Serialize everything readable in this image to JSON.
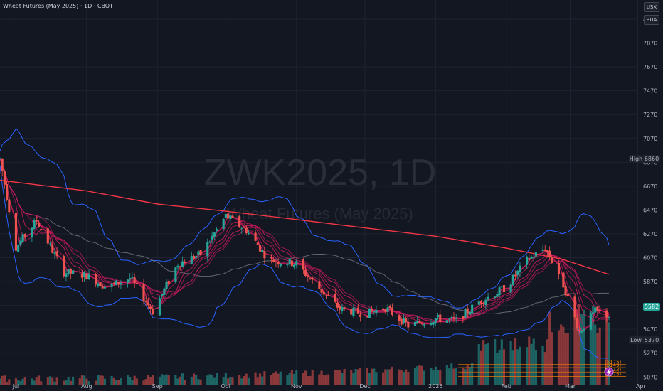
{
  "header": {
    "title": "Wheat Futures (May 2025) · 1D · CBOT",
    "currency": "USX",
    "unit": "BUA"
  },
  "watermark": {
    "symbol": "ZWK2025, 1D",
    "name": "Wheat Futures (May 2025)"
  },
  "labels": {
    "high_label": "High",
    "high_value": "6860",
    "low_label": "Low",
    "low_value": "5370",
    "last_value": "5582"
  },
  "colors": {
    "up": "#26a69a",
    "down": "#ef5350",
    "ma200": "#f23645",
    "bollinger": "#2962ff",
    "ribbon": "#e91e63",
    "ma_gray": "#787b86",
    "fib": "#f57c00"
  },
  "chart_data": {
    "type": "candlestick",
    "y_axis": {
      "min": 5000,
      "max": 8100,
      "ticks": [
        "8070",
        "7870",
        "7670",
        "7470",
        "7270",
        "7070",
        "6870",
        "6670",
        "6470",
        "6270",
        "6070",
        "5870",
        "5670",
        "5470",
        "5270",
        "5070"
      ]
    },
    "x_axis": {
      "ticks": [
        "Jul",
        "Aug",
        "Sep",
        "Oct",
        "Nov",
        "Dec",
        "2025",
        "Feb",
        "Mar",
        "Apr"
      ]
    },
    "ma200": [
      {
        "d": "2024-06-24",
        "v": 6720
      },
      {
        "d": "2024-08-01",
        "v": 6630
      },
      {
        "d": "2024-09-01",
        "v": 6520
      },
      {
        "d": "2024-10-01",
        "v": 6460
      },
      {
        "d": "2024-11-01",
        "v": 6390
      },
      {
        "d": "2024-12-01",
        "v": 6320
      },
      {
        "d": "2025-01-01",
        "v": 6250
      },
      {
        "d": "2025-02-01",
        "v": 6150
      },
      {
        "d": "2025-02-25",
        "v": 6060
      },
      {
        "d": "2025-03-18",
        "v": 5930
      }
    ],
    "price_path": [
      {
        "d": "2024-06-24",
        "v": 6900
      },
      {
        "d": "2024-07-01",
        "v": 6160
      },
      {
        "d": "2024-07-10",
        "v": 6380
      },
      {
        "d": "2024-07-22",
        "v": 5950
      },
      {
        "d": "2024-08-01",
        "v": 5920
      },
      {
        "d": "2024-08-10",
        "v": 5820
      },
      {
        "d": "2024-08-20",
        "v": 5900
      },
      {
        "d": "2024-08-30",
        "v": 5620
      },
      {
        "d": "2024-09-10",
        "v": 6020
      },
      {
        "d": "2024-09-20",
        "v": 6100
      },
      {
        "d": "2024-10-01",
        "v": 6420
      },
      {
        "d": "2024-10-10",
        "v": 6300
      },
      {
        "d": "2024-10-20",
        "v": 6050
      },
      {
        "d": "2024-11-01",
        "v": 6020
      },
      {
        "d": "2024-11-10",
        "v": 5830
      },
      {
        "d": "2024-11-20",
        "v": 5640
      },
      {
        "d": "2024-12-01",
        "v": 5600
      },
      {
        "d": "2024-12-10",
        "v": 5650
      },
      {
        "d": "2024-12-20",
        "v": 5500
      },
      {
        "d": "2025-01-01",
        "v": 5560
      },
      {
        "d": "2025-01-10",
        "v": 5540
      },
      {
        "d": "2025-01-20",
        "v": 5700
      },
      {
        "d": "2025-02-01",
        "v": 5820
      },
      {
        "d": "2025-02-10",
        "v": 6050
      },
      {
        "d": "2025-02-18",
        "v": 6150
      },
      {
        "d": "2025-02-25",
        "v": 5900
      },
      {
        "d": "2025-03-05",
        "v": 5450
      },
      {
        "d": "2025-03-12",
        "v": 5620
      },
      {
        "d": "2025-03-18",
        "v": 5582
      }
    ],
    "fib_levels": [
      {
        "label": "(5175)",
        "v": 5175
      },
      {
        "label": "(5149)",
        "v": 5149
      },
      {
        "label": "(5112)",
        "v": 5112
      },
      {
        "label": "(5075)",
        "v": 5075
      }
    ]
  }
}
